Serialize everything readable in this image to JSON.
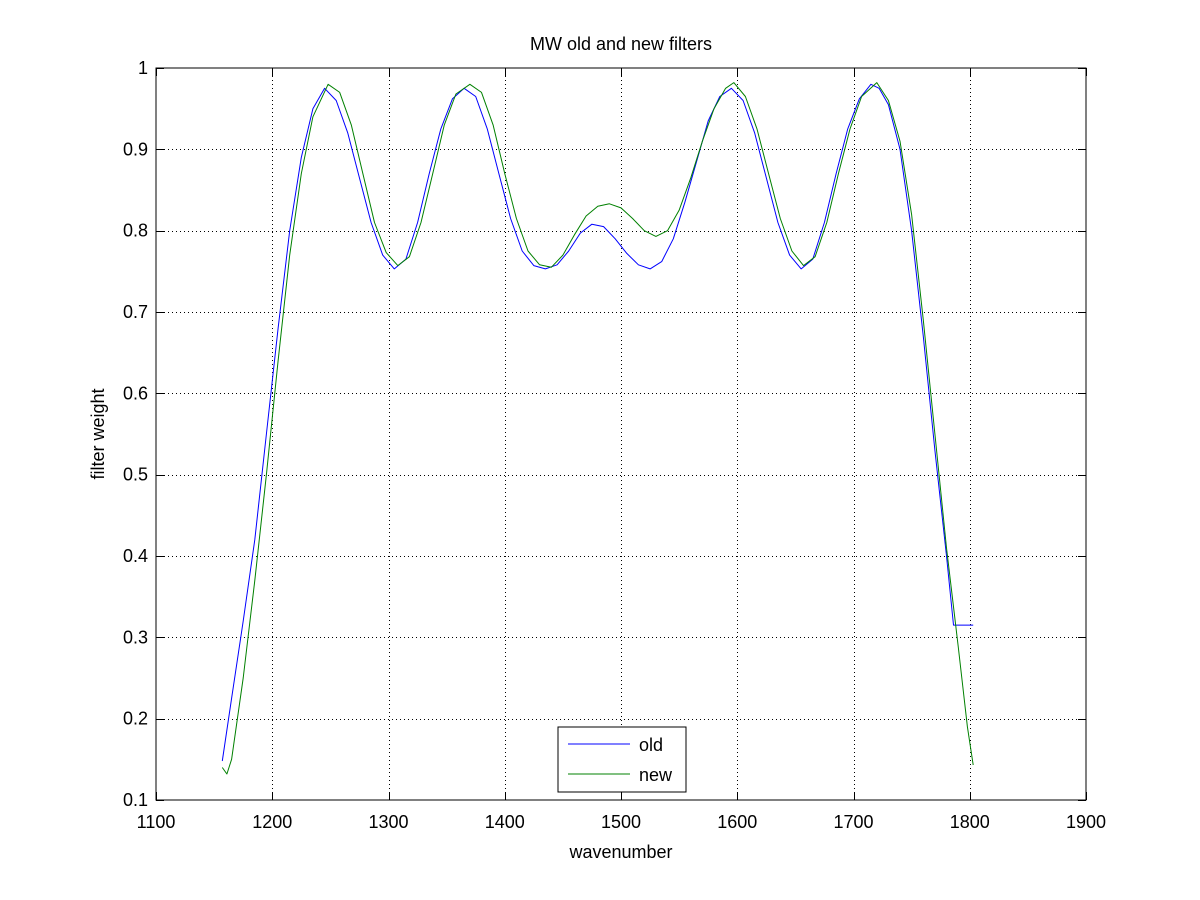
{
  "chart_data": {
    "type": "line",
    "title": "MW old and new filters",
    "xlabel": "wavenumber",
    "ylabel": "filter weight",
    "xlim": [
      1100,
      1900
    ],
    "ylim": [
      0.1,
      1.0
    ],
    "xticks": [
      1100,
      1200,
      1300,
      1400,
      1500,
      1600,
      1700,
      1800,
      1900
    ],
    "yticks": [
      0.1,
      0.2,
      0.3,
      0.4,
      0.5,
      0.6,
      0.7,
      0.8,
      0.9,
      1.0
    ],
    "xtick_labels": [
      "1100",
      "1200",
      "1300",
      "1400",
      "1500",
      "1600",
      "1700",
      "1800",
      "1900"
    ],
    "ytick_labels": [
      "0.1",
      "0.2",
      "0.3",
      "0.4",
      "0.5",
      "0.6",
      "0.7",
      "0.8",
      "0.9",
      "1"
    ],
    "grid": true,
    "legend_position": "bottom-center",
    "series": [
      {
        "name": "old",
        "color": "#0000ff",
        "points": [
          [
            1157,
            0.148
          ],
          [
            1165,
            0.225
          ],
          [
            1175,
            0.32
          ],
          [
            1185,
            0.42
          ],
          [
            1195,
            0.55
          ],
          [
            1205,
            0.68
          ],
          [
            1215,
            0.8
          ],
          [
            1225,
            0.89
          ],
          [
            1235,
            0.95
          ],
          [
            1245,
            0.975
          ],
          [
            1255,
            0.96
          ],
          [
            1265,
            0.92
          ],
          [
            1275,
            0.865
          ],
          [
            1285,
            0.81
          ],
          [
            1295,
            0.77
          ],
          [
            1305,
            0.753
          ],
          [
            1315,
            0.765
          ],
          [
            1325,
            0.81
          ],
          [
            1335,
            0.87
          ],
          [
            1345,
            0.925
          ],
          [
            1355,
            0.962
          ],
          [
            1365,
            0.975
          ],
          [
            1375,
            0.965
          ],
          [
            1385,
            0.925
          ],
          [
            1395,
            0.87
          ],
          [
            1405,
            0.815
          ],
          [
            1415,
            0.775
          ],
          [
            1425,
            0.757
          ],
          [
            1435,
            0.753
          ],
          [
            1445,
            0.758
          ],
          [
            1455,
            0.775
          ],
          [
            1465,
            0.797
          ],
          [
            1475,
            0.808
          ],
          [
            1485,
            0.805
          ],
          [
            1495,
            0.79
          ],
          [
            1505,
            0.772
          ],
          [
            1515,
            0.758
          ],
          [
            1525,
            0.753
          ],
          [
            1535,
            0.762
          ],
          [
            1545,
            0.79
          ],
          [
            1555,
            0.835
          ],
          [
            1565,
            0.885
          ],
          [
            1575,
            0.935
          ],
          [
            1585,
            0.965
          ],
          [
            1595,
            0.975
          ],
          [
            1605,
            0.96
          ],
          [
            1615,
            0.92
          ],
          [
            1625,
            0.865
          ],
          [
            1635,
            0.81
          ],
          [
            1645,
            0.77
          ],
          [
            1655,
            0.753
          ],
          [
            1665,
            0.765
          ],
          [
            1675,
            0.81
          ],
          [
            1685,
            0.87
          ],
          [
            1695,
            0.925
          ],
          [
            1705,
            0.962
          ],
          [
            1715,
            0.98
          ],
          [
            1722,
            0.975
          ],
          [
            1730,
            0.955
          ],
          [
            1740,
            0.9
          ],
          [
            1750,
            0.8
          ],
          [
            1760,
            0.67
          ],
          [
            1770,
            0.53
          ],
          [
            1780,
            0.4
          ],
          [
            1786,
            0.315
          ],
          [
            1803,
            0.315
          ]
        ]
      },
      {
        "name": "new",
        "color": "#008000",
        "points": [
          [
            1157,
            0.14
          ],
          [
            1161,
            0.132
          ],
          [
            1165,
            0.15
          ],
          [
            1175,
            0.25
          ],
          [
            1185,
            0.37
          ],
          [
            1195,
            0.5
          ],
          [
            1205,
            0.64
          ],
          [
            1215,
            0.77
          ],
          [
            1225,
            0.87
          ],
          [
            1235,
            0.94
          ],
          [
            1248,
            0.98
          ],
          [
            1258,
            0.97
          ],
          [
            1268,
            0.93
          ],
          [
            1278,
            0.87
          ],
          [
            1288,
            0.81
          ],
          [
            1298,
            0.773
          ],
          [
            1308,
            0.757
          ],
          [
            1318,
            0.768
          ],
          [
            1328,
            0.81
          ],
          [
            1338,
            0.87
          ],
          [
            1348,
            0.93
          ],
          [
            1358,
            0.968
          ],
          [
            1370,
            0.98
          ],
          [
            1380,
            0.97
          ],
          [
            1390,
            0.93
          ],
          [
            1400,
            0.87
          ],
          [
            1410,
            0.815
          ],
          [
            1420,
            0.775
          ],
          [
            1430,
            0.758
          ],
          [
            1440,
            0.755
          ],
          [
            1450,
            0.77
          ],
          [
            1460,
            0.795
          ],
          [
            1470,
            0.818
          ],
          [
            1480,
            0.83
          ],
          [
            1490,
            0.833
          ],
          [
            1500,
            0.828
          ],
          [
            1510,
            0.815
          ],
          [
            1520,
            0.8
          ],
          [
            1530,
            0.793
          ],
          [
            1540,
            0.8
          ],
          [
            1550,
            0.825
          ],
          [
            1560,
            0.865
          ],
          [
            1570,
            0.91
          ],
          [
            1580,
            0.95
          ],
          [
            1590,
            0.975
          ],
          [
            1597,
            0.982
          ],
          [
            1607,
            0.965
          ],
          [
            1617,
            0.925
          ],
          [
            1627,
            0.87
          ],
          [
            1637,
            0.815
          ],
          [
            1647,
            0.775
          ],
          [
            1657,
            0.757
          ],
          [
            1667,
            0.768
          ],
          [
            1677,
            0.81
          ],
          [
            1687,
            0.87
          ],
          [
            1697,
            0.925
          ],
          [
            1707,
            0.965
          ],
          [
            1720,
            0.982
          ],
          [
            1730,
            0.96
          ],
          [
            1740,
            0.91
          ],
          [
            1750,
            0.82
          ],
          [
            1760,
            0.69
          ],
          [
            1770,
            0.55
          ],
          [
            1780,
            0.41
          ],
          [
            1790,
            0.29
          ],
          [
            1798,
            0.19
          ],
          [
            1803,
            0.143
          ]
        ]
      }
    ]
  }
}
